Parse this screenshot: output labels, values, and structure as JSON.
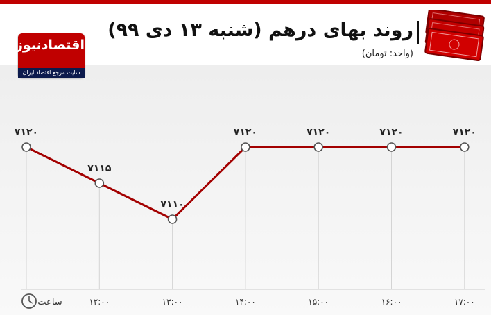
{
  "header": {
    "title": "روند بهای درهم (شنبه ۱۳ دی ۹۹)",
    "unit": "(واحد: تومان)"
  },
  "logo": {
    "name": "اقتصادنیوز",
    "tagline": "سایت مرجع اقتصاد ایران"
  },
  "x_axis_label": "ساعت",
  "colors": {
    "line": "#a30000",
    "accent": "#c00000",
    "navy": "#0d1b4d"
  },
  "chart_data": {
    "type": "line",
    "categories": [
      "",
      "۱۲:۰۰",
      "۱۳:۰۰",
      "۱۴:۰۰",
      "۱۵:۰۰",
      "۱۶:۰۰",
      "۱۷:۰۰"
    ],
    "series": [
      {
        "values": [
          7120,
          7115,
          7110,
          7120,
          7120,
          7120,
          7120
        ]
      }
    ],
    "point_labels": [
      "۷۱۲۰",
      "۷۱۱۵",
      "۷۱۱۰",
      "۷۱۲۰",
      "۷۱۲۰",
      "۷۱۲۰",
      "۷۱۲۰"
    ],
    "title": "روند بهای درهم (شنبه ۱۳ دی ۹۹)",
    "xlabel": "ساعت",
    "ylabel": "",
    "grid": "vertical"
  }
}
